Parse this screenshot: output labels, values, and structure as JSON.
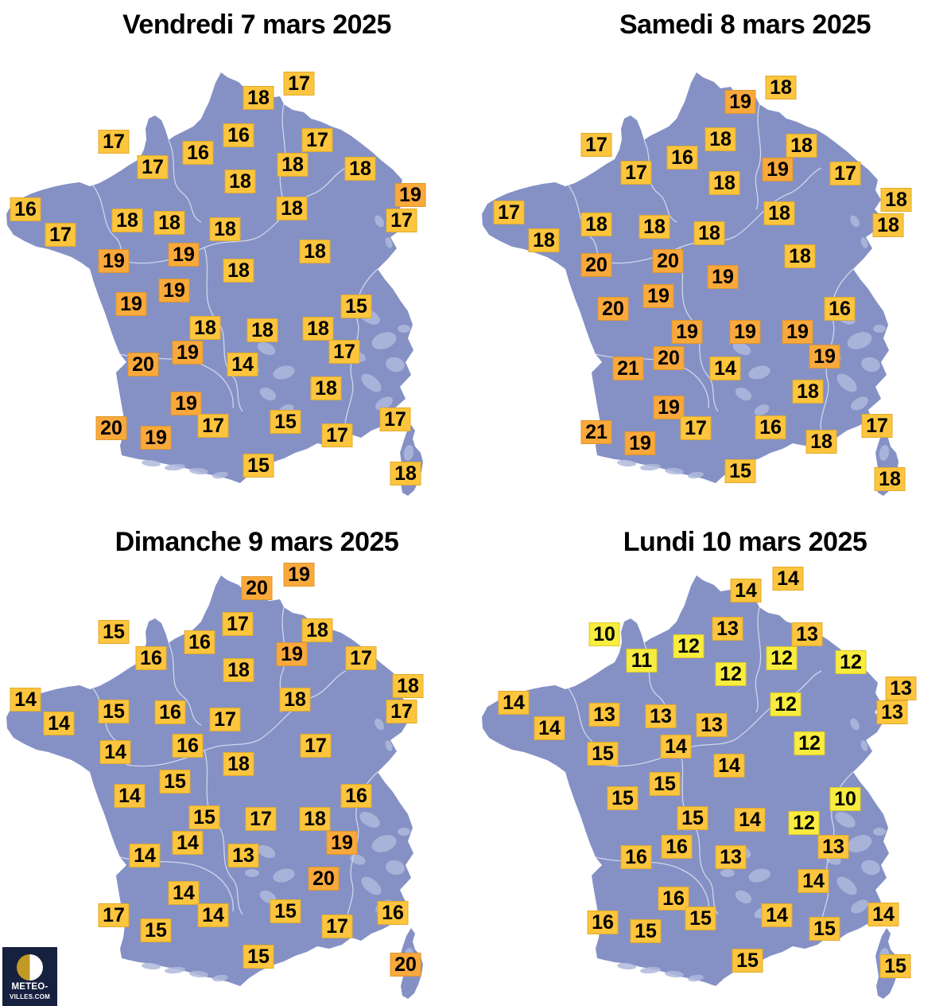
{
  "colors": {
    "background": "#FFFFFF",
    "title_color": "#000000",
    "map_fill": "#8591C5",
    "map_texture": "#AFB9DC",
    "region_border": "#DCE2F2",
    "badge_hot": "#F9A93C",
    "badge_warm": "#FCC53D",
    "badge_mild": "#F8EC3E",
    "badge_text": "#000000",
    "logo_bg": "#16203F",
    "logo_gold": "#C19A26",
    "logo_white": "#FFFFFF"
  },
  "badge_rules": {
    "hot_min": 19,
    "mild_max": 12
  },
  "logo": {
    "line1": "METEO-",
    "line2": "VILLES.COM"
  },
  "panels": [
    {
      "id": "vendredi",
      "title": "Vendredi 7 mars 2025",
      "badges": [
        [
          17,
          376,
          105
        ],
        [
          18,
          325,
          123
        ],
        [
          17,
          143,
          178
        ],
        [
          16,
          300,
          170
        ],
        [
          16,
          249,
          192
        ],
        [
          17,
          399,
          176
        ],
        [
          17,
          192,
          210
        ],
        [
          18,
          368,
          207
        ],
        [
          18,
          453,
          212
        ],
        [
          18,
          302,
          228
        ],
        [
          19,
          516,
          245
        ],
        [
          16,
          32,
          263
        ],
        [
          18,
          160,
          277
        ],
        [
          18,
          213,
          280
        ],
        [
          18,
          367,
          262
        ],
        [
          17,
          505,
          277
        ],
        [
          17,
          76,
          295
        ],
        [
          18,
          283,
          288
        ],
        [
          18,
          396,
          316
        ],
        [
          19,
          143,
          328
        ],
        [
          19,
          231,
          320
        ],
        [
          18,
          300,
          340
        ],
        [
          19,
          219,
          365
        ],
        [
          19,
          165,
          382
        ],
        [
          15,
          448,
          385
        ],
        [
          18,
          258,
          412
        ],
        [
          18,
          330,
          415
        ],
        [
          18,
          400,
          413
        ],
        [
          19,
          236,
          443
        ],
        [
          17,
          433,
          442
        ],
        [
          20,
          180,
          458
        ],
        [
          14,
          305,
          458
        ],
        [
          18,
          410,
          488
        ],
        [
          19,
          234,
          507
        ],
        [
          20,
          140,
          538
        ],
        [
          17,
          268,
          535
        ],
        [
          15,
          359,
          530
        ],
        [
          17,
          424,
          547
        ],
        [
          17,
          497,
          527
        ],
        [
          19,
          196,
          550
        ],
        [
          15,
          325,
          585
        ],
        [
          18,
          510,
          595
        ]
      ]
    },
    {
      "id": "samedi",
      "title": "Samedi 8 mars 2025",
      "badges": [
        [
          18,
          384,
          110
        ],
        [
          19,
          333,
          128
        ],
        [
          17,
          152,
          182
        ],
        [
          18,
          308,
          175
        ],
        [
          16,
          260,
          198
        ],
        [
          18,
          410,
          183
        ],
        [
          17,
          202,
          217
        ],
        [
          19,
          380,
          213
        ],
        [
          17,
          465,
          218
        ],
        [
          18,
          313,
          230
        ],
        [
          17,
          42,
          267
        ],
        [
          18,
          529,
          251
        ],
        [
          18,
          382,
          268
        ],
        [
          18,
          152,
          282
        ],
        [
          18,
          225,
          285
        ],
        [
          18,
          294,
          293
        ],
        [
          18,
          86,
          302
        ],
        [
          18,
          519,
          283
        ],
        [
          20,
          152,
          333
        ],
        [
          20,
          242,
          328
        ],
        [
          19,
          311,
          348
        ],
        [
          18,
          408,
          322
        ],
        [
          19,
          230,
          372
        ],
        [
          20,
          173,
          388
        ],
        [
          16,
          458,
          388
        ],
        [
          19,
          266,
          417
        ],
        [
          19,
          339,
          417
        ],
        [
          19,
          405,
          417
        ],
        [
          20,
          243,
          450
        ],
        [
          19,
          439,
          448
        ],
        [
          21,
          192,
          463
        ],
        [
          14,
          314,
          463
        ],
        [
          18,
          418,
          492
        ],
        [
          19,
          243,
          512
        ],
        [
          21,
          152,
          543
        ],
        [
          17,
          277,
          538
        ],
        [
          16,
          371,
          537
        ],
        [
          19,
          207,
          557
        ],
        [
          18,
          435,
          555
        ],
        [
          17,
          505,
          535
        ],
        [
          15,
          333,
          592
        ],
        [
          18,
          521,
          602
        ]
      ]
    },
    {
      "id": "dimanche",
      "title": "Dimanche 9 mars 2025",
      "badges": [
        [
          19,
          376,
          90
        ],
        [
          20,
          323,
          107
        ],
        [
          15,
          143,
          162
        ],
        [
          17,
          299,
          152
        ],
        [
          16,
          251,
          175
        ],
        [
          18,
          399,
          160
        ],
        [
          16,
          190,
          195
        ],
        [
          19,
          367,
          190
        ],
        [
          17,
          454,
          195
        ],
        [
          18,
          300,
          210
        ],
        [
          14,
          32,
          247
        ],
        [
          18,
          513,
          230
        ],
        [
          18,
          371,
          247
        ],
        [
          15,
          143,
          262
        ],
        [
          16,
          214,
          263
        ],
        [
          14,
          74,
          277
        ],
        [
          17,
          283,
          272
        ],
        [
          17,
          505,
          262
        ],
        [
          17,
          397,
          305
        ],
        [
          14,
          145,
          313
        ],
        [
          16,
          236,
          305
        ],
        [
          18,
          300,
          328
        ],
        [
          15,
          220,
          350
        ],
        [
          14,
          163,
          368
        ],
        [
          16,
          448,
          368
        ],
        [
          15,
          257,
          395
        ],
        [
          17,
          328,
          397
        ],
        [
          18,
          396,
          397
        ],
        [
          14,
          236,
          427
        ],
        [
          19,
          430,
          427
        ],
        [
          14,
          182,
          443
        ],
        [
          13,
          306,
          443
        ],
        [
          20,
          407,
          472
        ],
        [
          14,
          231,
          490
        ],
        [
          17,
          143,
          518
        ],
        [
          14,
          268,
          518
        ],
        [
          15,
          359,
          513
        ],
        [
          15,
          196,
          537
        ],
        [
          17,
          424,
          532
        ],
        [
          16,
          494,
          515
        ],
        [
          15,
          325,
          570
        ],
        [
          20,
          510,
          580
        ]
      ]
    },
    {
      "id": "lundi",
      "title": "Lundi 10 mars 2025",
      "badges": [
        [
          14,
          393,
          95
        ],
        [
          14,
          340,
          110
        ],
        [
          10,
          162,
          165
        ],
        [
          13,
          317,
          158
        ],
        [
          13,
          417,
          165
        ],
        [
          12,
          268,
          180
        ],
        [
          11,
          209,
          198
        ],
        [
          12,
          385,
          195
        ],
        [
          12,
          472,
          200
        ],
        [
          12,
          321,
          215
        ],
        [
          13,
          535,
          233
        ],
        [
          14,
          48,
          251
        ],
        [
          12,
          390,
          253
        ],
        [
          13,
          524,
          263
        ],
        [
          13,
          162,
          266
        ],
        [
          13,
          233,
          268
        ],
        [
          14,
          93,
          283
        ],
        [
          13,
          297,
          279
        ],
        [
          14,
          252,
          306
        ],
        [
          12,
          420,
          302
        ],
        [
          15,
          160,
          315
        ],
        [
          14,
          319,
          330
        ],
        [
          15,
          238,
          353
        ],
        [
          15,
          185,
          371
        ],
        [
          10,
          465,
          372
        ],
        [
          15,
          273,
          396
        ],
        [
          14,
          345,
          398
        ],
        [
          12,
          413,
          402
        ],
        [
          16,
          253,
          432
        ],
        [
          13,
          450,
          432
        ],
        [
          16,
          202,
          445
        ],
        [
          13,
          321,
          445
        ],
        [
          14,
          425,
          475
        ],
        [
          16,
          249,
          497
        ],
        [
          16,
          160,
          527
        ],
        [
          15,
          283,
          522
        ],
        [
          14,
          379,
          518
        ],
        [
          15,
          214,
          538
        ],
        [
          15,
          439,
          535
        ],
        [
          14,
          513,
          517
        ],
        [
          15,
          342,
          575
        ],
        [
          15,
          528,
          582
        ]
      ]
    }
  ]
}
